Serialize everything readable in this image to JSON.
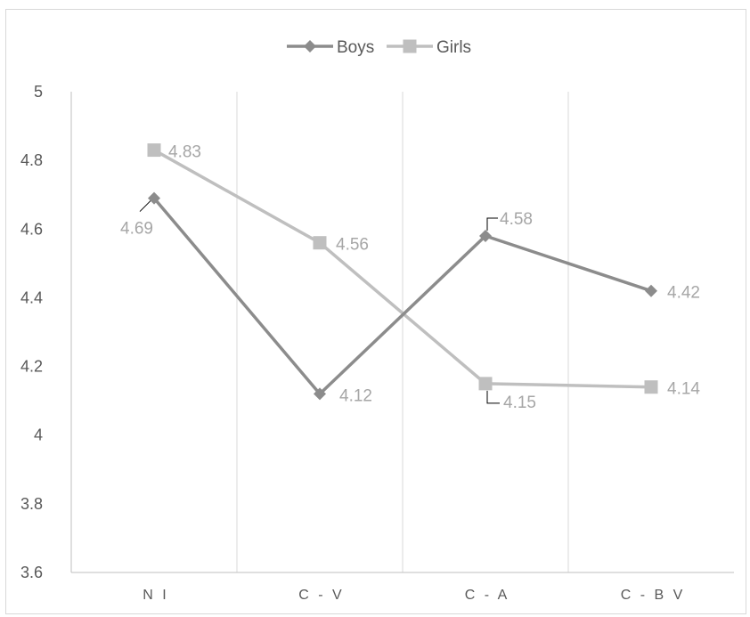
{
  "chart_data": {
    "type": "line",
    "categories": [
      "N I",
      "C - V",
      "C - A",
      "C - B V"
    ],
    "series": [
      {
        "name": "Boys",
        "values": [
          4.69,
          4.12,
          4.58,
          4.42
        ],
        "color": "#8c8c8c",
        "marker": "diamond"
      },
      {
        "name": "Girls",
        "values": [
          4.83,
          4.56,
          4.15,
          4.14
        ],
        "color": "#bfbfbf",
        "marker": "square"
      }
    ],
    "y_ticks": [
      "3.6",
      "3.8",
      "4",
      "4.2",
      "4.4",
      "4.6",
      "4.8",
      "5"
    ],
    "ylim": [
      3.6,
      5
    ],
    "y_tick_step": 0.2,
    "legend_position": "top",
    "gridlines": "vertical",
    "data_labels": {
      "Boys": [
        "4.69",
        "4.12",
        "4.58",
        "4.42"
      ],
      "Girls": [
        "4.83",
        "4.56",
        "4.15",
        "4.14"
      ]
    }
  },
  "colors": {
    "axis": "#bfbfbf",
    "grid": "#d9d9d9",
    "label_text": "#a6a6a6",
    "tick_text": "#595959",
    "leader_line": "#000000"
  }
}
